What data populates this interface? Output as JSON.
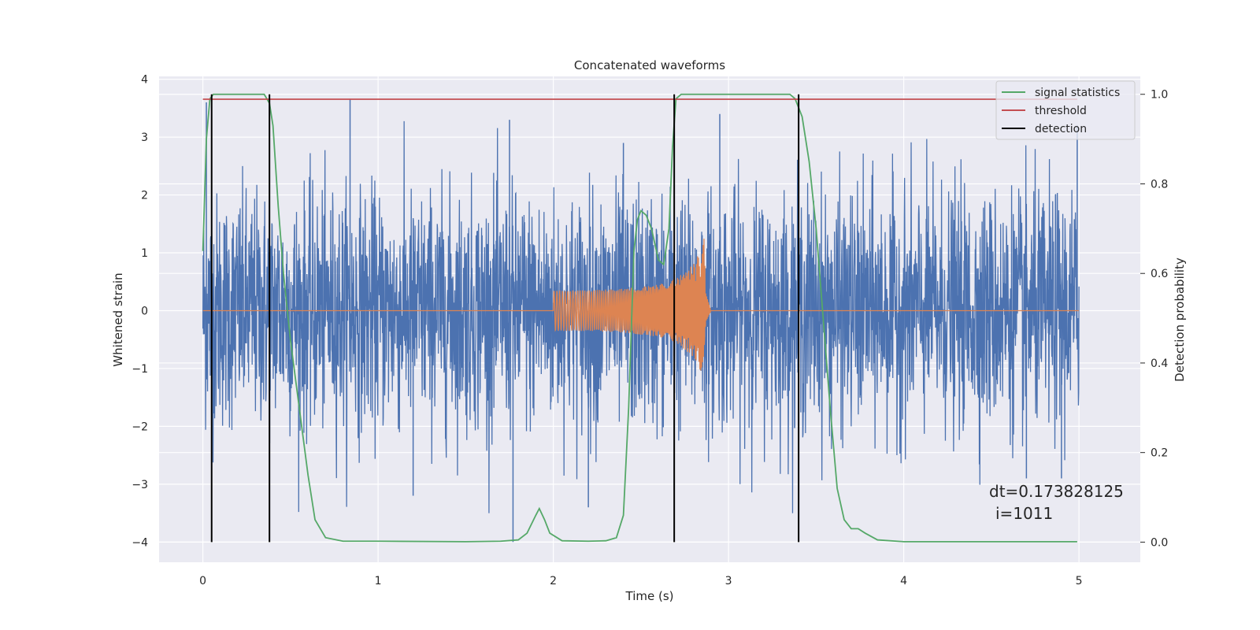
{
  "chart_data": {
    "type": "line",
    "title": "Concatenated waveforms",
    "xlabel": "Time (s)",
    "ylabel": "Whitened strain",
    "y2label": "Detection probability",
    "xlim": [
      -0.25,
      5.35
    ],
    "ylim": [
      -4.35,
      4.05
    ],
    "y2lim": [
      -0.045,
      1.04
    ],
    "xticks": [
      0,
      1,
      2,
      3,
      4,
      5
    ],
    "yticks": [
      -4,
      -3,
      -2,
      -1,
      0,
      1,
      2,
      3,
      4
    ],
    "y2ticks": [
      0.0,
      0.2,
      0.4,
      0.6,
      0.8,
      1.0
    ],
    "grid": true,
    "legend_position": "top-right",
    "series": [
      {
        "name": "signal statistics",
        "axis": "right",
        "color": "#55a868",
        "x": [
          0.0,
          0.02,
          0.04,
          0.06,
          0.08,
          0.1,
          0.15,
          0.2,
          0.25,
          0.3,
          0.35,
          0.38,
          0.4,
          0.43,
          0.46,
          0.5,
          0.55,
          0.6,
          0.64,
          0.7,
          0.8,
          1.0,
          1.5,
          1.7,
          1.8,
          1.85,
          1.9,
          1.92,
          1.95,
          1.98,
          2.05,
          2.2,
          2.3,
          2.36,
          2.4,
          2.43,
          2.46,
          2.48,
          2.5,
          2.53,
          2.56,
          2.6,
          2.63,
          2.66,
          2.68,
          2.7,
          2.73,
          2.8,
          3.0,
          3.2,
          3.35,
          3.38,
          3.42,
          3.46,
          3.5,
          3.54,
          3.58,
          3.62,
          3.66,
          3.7,
          3.74,
          3.78,
          3.85,
          4.0,
          4.5,
          4.99
        ],
        "y": [
          0.65,
          0.9,
          0.99,
          1.0,
          1.0,
          1.0,
          1.0,
          1.0,
          1.0,
          1.0,
          1.0,
          0.98,
          0.93,
          0.75,
          0.6,
          0.45,
          0.3,
          0.15,
          0.05,
          0.01,
          0.002,
          0.002,
          0.001,
          0.002,
          0.005,
          0.02,
          0.06,
          0.075,
          0.05,
          0.02,
          0.003,
          0.002,
          0.003,
          0.01,
          0.06,
          0.3,
          0.65,
          0.72,
          0.74,
          0.73,
          0.7,
          0.63,
          0.62,
          0.7,
          0.88,
          0.99,
          1.0,
          1.0,
          1.0,
          1.0,
          1.0,
          0.99,
          0.95,
          0.85,
          0.7,
          0.5,
          0.3,
          0.12,
          0.05,
          0.03,
          0.03,
          0.02,
          0.005,
          0.001,
          0.001,
          0.001
        ]
      },
      {
        "name": "threshold",
        "axis": "right",
        "color": "#c44e52",
        "x": [
          0.0,
          4.99
        ],
        "y": [
          0.989,
          0.989
        ]
      },
      {
        "name": "detection",
        "axis": "right",
        "color": "#000000",
        "x": [
          0.05,
          0.38,
          2.69,
          3.4
        ],
        "y_range": [
          0.0,
          1.0
        ]
      },
      {
        "name": "",
        "axis": "left",
        "color": "#4c72b0",
        "description_kind": "whitened-noise",
        "x_range": [
          0.0,
          5.0
        ],
        "envelope": 1.0
      },
      {
        "name": "",
        "axis": "left",
        "color": "#dd8452",
        "description_kind": "chirp",
        "x": [
          0.0,
          2.0,
          2.2,
          2.4,
          2.6,
          2.7,
          2.8,
          2.85,
          2.86,
          2.87,
          2.9,
          5.0
        ],
        "envelope": [
          0.0,
          0.35,
          0.35,
          0.38,
          0.45,
          0.55,
          0.8,
          1.1,
          1.25,
          0.3,
          0.0,
          0.0
        ]
      }
    ],
    "noise_spikes": [
      {
        "x": 0.02,
        "y": 3.6
      },
      {
        "x": 0.05,
        "y": -2.6
      },
      {
        "x": 0.38,
        "y": 3.6
      },
      {
        "x": 0.84,
        "y": 3.65
      },
      {
        "x": 1.77,
        "y": -4.0
      },
      {
        "x": 1.75,
        "y": 3.3
      },
      {
        "x": 2.4,
        "y": 2.9
      },
      {
        "x": 2.69,
        "y": -3.1
      },
      {
        "x": 3.4,
        "y": -3.1
      },
      {
        "x": 4.7,
        "y": -2.9
      },
      {
        "x": 4.9,
        "y": -2.9
      },
      {
        "x": 4.99,
        "y": 3.2
      },
      {
        "x": 1.2,
        "y": -3.2
      },
      {
        "x": 2.2,
        "y": -3.4
      },
      {
        "x": 2.95,
        "y": 3.4
      }
    ],
    "annotations": [
      {
        "text": "dt=0.173828125"
      },
      {
        "text": "i=1011"
      }
    ]
  }
}
